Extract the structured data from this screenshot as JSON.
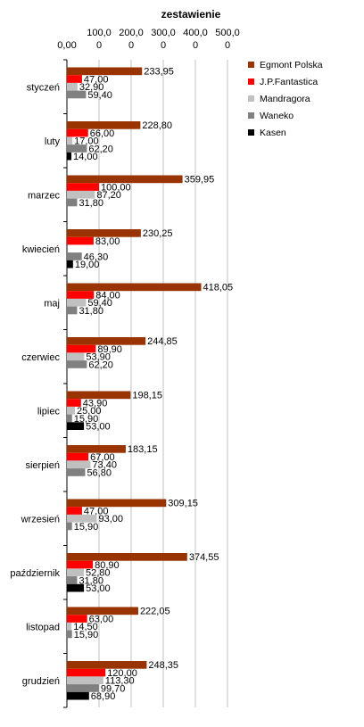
{
  "chart_data": {
    "type": "bar",
    "orientation": "horizontal",
    "title": "zestawienie",
    "xlim": [
      0,
      500
    ],
    "x_ticks": [
      "0,00",
      "100,0",
      "200,0",
      "300,0",
      "400,0",
      "500,0"
    ],
    "x_ticks_row2": [
      "0",
      "0",
      "0",
      "0",
      "0"
    ],
    "grid": true,
    "legend_position": "top-right",
    "categories": [
      "styczeń",
      "luty",
      "marzec",
      "kwiecień",
      "maj",
      "czerwiec",
      "lipiec",
      "sierpień",
      "wrzesień",
      "październik",
      "listopad",
      "grudzień"
    ],
    "series": [
      {
        "name": "Egmont Polska",
        "color": "#993300",
        "values": [
          233.95,
          228.8,
          359.95,
          230.25,
          418.05,
          244.85,
          198.15,
          183.15,
          309.15,
          374.55,
          222.05,
          248.35
        ],
        "labels": [
          "233,95",
          "228,80",
          "359,95",
          "230,25",
          "418,05",
          "244,85",
          "198,15",
          "183,15",
          "309,15",
          "374,55",
          "222,05",
          "248,35"
        ]
      },
      {
        "name": "J.P.Fantastica",
        "color": "#ff0000",
        "values": [
          47.0,
          66.0,
          100.0,
          83.0,
          84.0,
          89.9,
          43.9,
          67.0,
          47.0,
          80.9,
          63.0,
          120.0
        ],
        "labels": [
          "47,00",
          "66,00",
          "100,00",
          "83,00",
          "84,00",
          "89,90",
          "43,90",
          "67,00",
          "47,00",
          "80,90",
          "63,00",
          "120,00"
        ]
      },
      {
        "name": "Mandragora",
        "color": "#c0c0c0",
        "values": [
          32.9,
          17.0,
          87.2,
          null,
          59.4,
          53.9,
          25.0,
          73.4,
          93.0,
          52.8,
          14.5,
          113.3
        ],
        "labels": [
          "32,90",
          "17,00",
          "87,20",
          "",
          "59,40",
          "53,90",
          "25,00",
          "73,40",
          "93,00",
          "52,80",
          "14,50",
          "113,30"
        ]
      },
      {
        "name": "Waneko",
        "color": "#808080",
        "values": [
          59.4,
          62.2,
          31.8,
          46.3,
          31.8,
          62.2,
          15.9,
          56.8,
          15.9,
          31.8,
          15.9,
          99.7
        ],
        "labels": [
          "59,40",
          "62,20",
          "31,80",
          "46,30",
          "31,80",
          "62,20",
          "15,90",
          "56,80",
          "15,90",
          "31,80",
          "15,90",
          "99,70"
        ]
      },
      {
        "name": "Kasen",
        "color": "#000000",
        "values": [
          null,
          14.0,
          null,
          19.0,
          null,
          null,
          53.0,
          null,
          null,
          53.0,
          null,
          68.9
        ],
        "labels": [
          "",
          "14,00",
          "",
          "19,00",
          "",
          "",
          "53,00",
          "",
          "",
          "53,00",
          "",
          "68,90"
        ]
      }
    ]
  }
}
